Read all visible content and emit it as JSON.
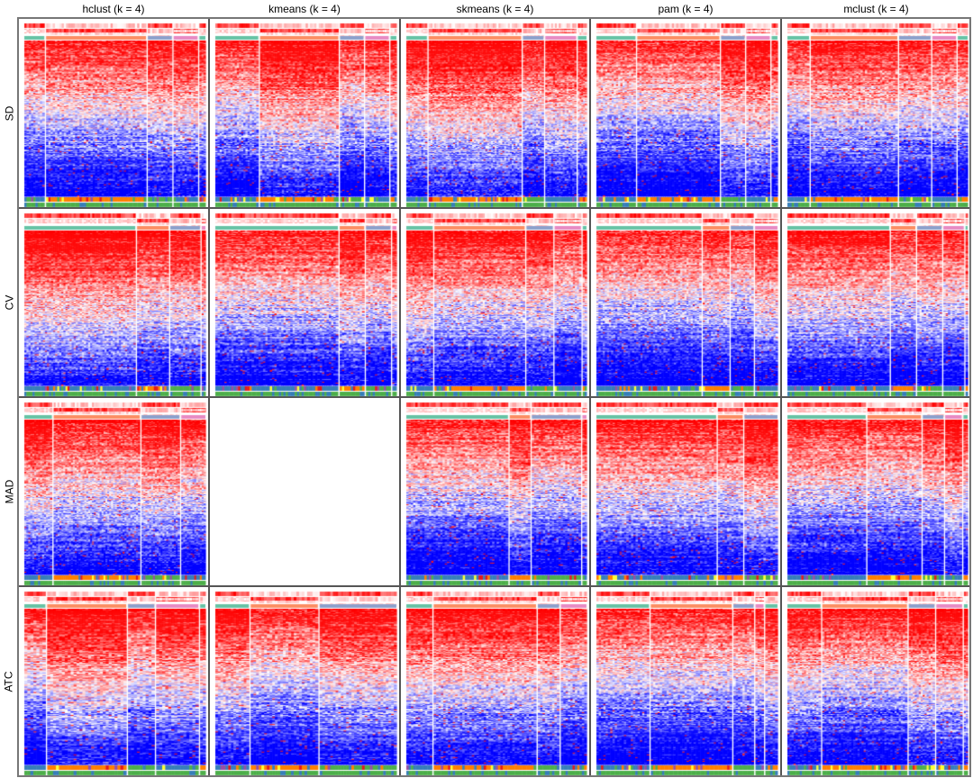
{
  "chart_data": {
    "type": "heatmap",
    "title": "",
    "columns": [
      "hclust (k = 4)",
      "kmeans (k = 4)",
      "skmeans (k = 4)",
      "pam (k = 4)",
      "mclust (k = 4)"
    ],
    "rows": [
      "SD",
      "CV",
      "MAD",
      "ATC"
    ],
    "color_scale": {
      "high": "#FF0000",
      "mid": "#FFFFFF",
      "low": "#0000FF"
    },
    "class_colors": [
      "#66C2A5",
      "#FC8D62",
      "#8DA0CB",
      "#E78AC3"
    ],
    "annotation_colors": [
      "#377EB8",
      "#FFFF33",
      "#FF7F00",
      "#984EA3",
      "#4DAF4A",
      "#E41A1C"
    ],
    "panels": [
      [
        {
          "cluster_sizes": [
            10,
            50,
            12,
            12,
            3
          ]
        },
        {
          "cluster_sizes": [
            22,
            40,
            12,
            12,
            3
          ]
        },
        {
          "cluster_sizes": [
            12,
            54,
            12,
            18,
            5
          ]
        },
        {
          "cluster_sizes": [
            20,
            42,
            12,
            12,
            3
          ]
        },
        {
          "cluster_sizes": [
            11,
            44,
            16,
            12,
            5
          ]
        }
      ],
      [
        {
          "cluster_sizes": [
            60,
            17,
            16,
            2
          ]
        },
        {
          "cluster_sizes": [
            60,
            12,
            12,
            2
          ]
        },
        {
          "cluster_sizes": [
            14,
            48,
            14,
            14,
            2
          ]
        },
        {
          "cluster_sizes": [
            56,
            14,
            12,
            12
          ]
        },
        {
          "cluster_sizes": [
            50,
            12,
            12,
            10,
            1
          ]
        }
      ],
      [
        {
          "cluster_sizes": [
            16,
            50,
            22,
            14
          ]
        },
        null,
        {
          "cluster_sizes": [
            50,
            10,
            24,
            2
          ]
        },
        {
          "cluster_sizes": [
            58,
            12,
            16
          ]
        },
        {
          "cluster_sizes": [
            38,
            26,
            10,
            8,
            2
          ]
        }
      ],
      [
        {
          "cluster_sizes": [
            8,
            30,
            10,
            16,
            2
          ]
        },
        {
          "cluster_sizes": [
            14,
            28,
            32
          ]
        },
        {
          "cluster_sizes": [
            12,
            48,
            10,
            12
          ]
        },
        {
          "cluster_sizes": [
            26,
            40,
            10,
            4,
            6
          ]
        },
        {
          "cluster_sizes": [
            18,
            46,
            14,
            14,
            2
          ]
        }
      ]
    ]
  }
}
